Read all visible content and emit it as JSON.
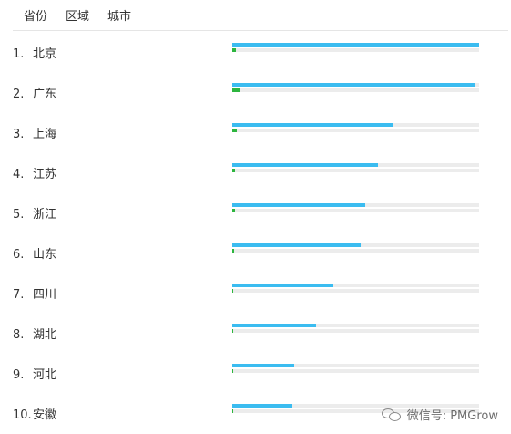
{
  "tabs": [
    "省份",
    "区域",
    "城市"
  ],
  "rows": [
    {
      "rank": "1.",
      "name": "北京",
      "blue": 1.0,
      "green": 0.015
    },
    {
      "rank": "2.",
      "name": "广东",
      "blue": 0.98,
      "green": 0.035
    },
    {
      "rank": "3.",
      "name": "上海",
      "blue": 0.65,
      "green": 0.018
    },
    {
      "rank": "4.",
      "name": "江苏",
      "blue": 0.59,
      "green": 0.012
    },
    {
      "rank": "5.",
      "name": "浙江",
      "blue": 0.54,
      "green": 0.012
    },
    {
      "rank": "6.",
      "name": "山东",
      "blue": 0.52,
      "green": 0.008
    },
    {
      "rank": "7.",
      "name": "四川",
      "blue": 0.41,
      "green": 0.005
    },
    {
      "rank": "8.",
      "name": "湖北",
      "blue": 0.34,
      "green": 0.005
    },
    {
      "rank": "9.",
      "name": "河北",
      "blue": 0.25,
      "green": 0.004
    },
    {
      "rank": "10.",
      "name": "安徽",
      "blue": 0.245,
      "green": 0.004
    }
  ],
  "watermark": {
    "text": "微信号: PMGrow",
    "icon": "wechat-icon"
  },
  "colors": {
    "blue": "#3bbcf0",
    "green": "#2db53f",
    "track": "#ececec"
  }
}
